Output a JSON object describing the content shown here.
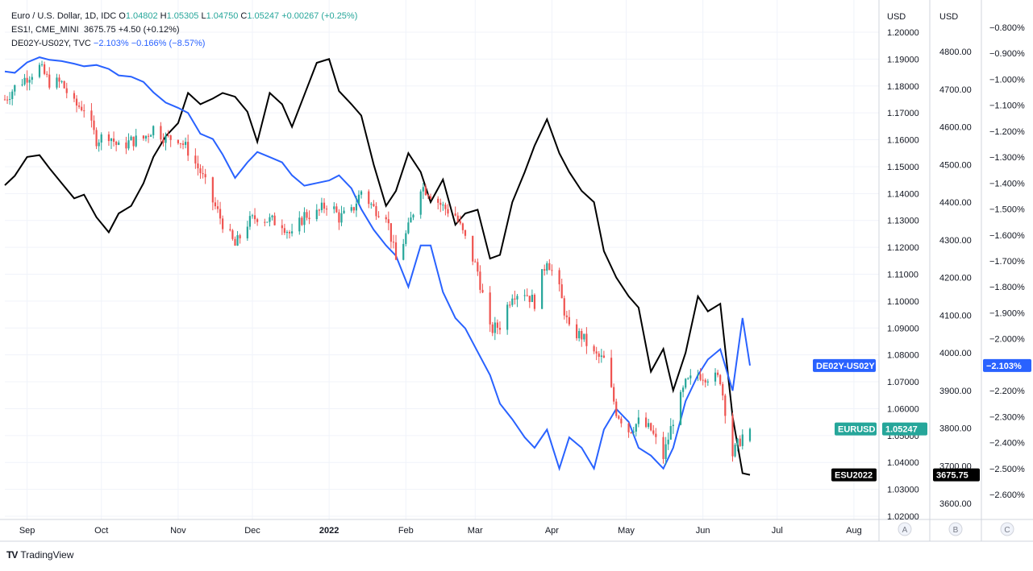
{
  "legend": {
    "eurusd": {
      "name": "Euro / U.S. Dollar, 1D, IDC",
      "o_label": "O",
      "o": "1.04802",
      "h_label": "H",
      "h": "1.05305",
      "l_label": "L",
      "l": "1.04750",
      "c_label": "C",
      "c": "1.05247",
      "change": "+0.00267 (+0.25%)"
    },
    "es1": {
      "name": "ES1!, CME_MINI",
      "value": "3675.75",
      "change": "+4.50 (+0.12%)"
    },
    "spread": {
      "name": "DE02Y-US02Y, TVC",
      "value": "−2.103%",
      "change": "−0.166% (−8.57%)"
    }
  },
  "axis_headers": {
    "a": "USD",
    "b": "USD"
  },
  "scale_buttons": [
    "A",
    "B",
    "C"
  ],
  "price_tags": {
    "spread_name": "DE02Y-US02Y",
    "spread_value": "−2.103%",
    "eurusd_name": "EURUSD",
    "eurusd_value": "1.05247",
    "es_name": "ESU2022",
    "es_value": "3675.75"
  },
  "footer": {
    "logo": "TV",
    "brand": "TradingView"
  },
  "colors": {
    "up": "#26a69a",
    "down": "#ef5350",
    "spread": "#2962ff",
    "es": "#000000",
    "eurusd_tag": "#26a69a",
    "spread_tag": "#2962ff",
    "es_tag": "#000000"
  },
  "chart_data": [
    {
      "type": "candlestick",
      "name": "EURUSD",
      "axis": "A",
      "ylim": [
        1.02,
        1.2
      ],
      "yticks": [
        "1.20000",
        "1.19000",
        "1.18000",
        "1.17000",
        "1.16000",
        "1.15000",
        "1.14000",
        "1.13000",
        "1.12000",
        "1.11000",
        "1.10000",
        "1.09000",
        "1.08000",
        "1.07000",
        "1.06000",
        "1.05000",
        "1.04000",
        "1.03000",
        "1.02000"
      ],
      "x_months": [
        "Sep",
        "Oct",
        "Nov",
        "Dec",
        "2022",
        "Feb",
        "Mar",
        "Apr",
        "May",
        "Jun",
        "Jul",
        "Aug"
      ],
      "closes": [
        [
          "2021-08-23",
          1.175
        ],
        [
          "2021-08-27",
          1.1795
        ],
        [
          "2021-09-01",
          1.1835
        ],
        [
          "2021-09-06",
          1.187
        ],
        [
          "2021-09-10",
          1.1815
        ],
        [
          "2021-09-15",
          1.181
        ],
        [
          "2021-09-20",
          1.173
        ],
        [
          "2021-09-24",
          1.172
        ],
        [
          "2021-09-29",
          1.16
        ],
        [
          "2021-10-04",
          1.162
        ],
        [
          "2021-10-08",
          1.157
        ],
        [
          "2021-10-13",
          1.1595
        ],
        [
          "2021-10-18",
          1.1605
        ],
        [
          "2021-10-22",
          1.1645
        ],
        [
          "2021-10-27",
          1.1605
        ],
        [
          "2021-11-01",
          1.1608
        ],
        [
          "2021-11-05",
          1.156
        ],
        [
          "2021-11-10",
          1.148
        ],
        [
          "2021-11-15",
          1.137
        ],
        [
          "2021-11-19",
          1.129
        ],
        [
          "2021-11-24",
          1.1205
        ],
        [
          "2021-11-29",
          1.129
        ],
        [
          "2021-12-03",
          1.1315
        ],
        [
          "2021-12-08",
          1.13
        ],
        [
          "2021-12-13",
          1.129
        ],
        [
          "2021-12-17",
          1.124
        ],
        [
          "2021-12-22",
          1.132
        ],
        [
          "2021-12-27",
          1.1325
        ],
        [
          "2022-01-01",
          1.137
        ],
        [
          "2022-01-05",
          1.131
        ],
        [
          "2022-01-10",
          1.133
        ],
        [
          "2022-01-14",
          1.141
        ],
        [
          "2022-01-19",
          1.1345
        ],
        [
          "2022-01-24",
          1.1325
        ],
        [
          "2022-01-28",
          1.115
        ],
        [
          "2022-02-02",
          1.127
        ],
        [
          "2022-02-07",
          1.143
        ],
        [
          "2022-02-11",
          1.14
        ],
        [
          "2022-02-16",
          1.135
        ],
        [
          "2022-02-21",
          1.132
        ],
        [
          "2022-02-25",
          1.123
        ],
        [
          "2022-03-02",
          1.111
        ],
        [
          "2022-03-07",
          1.089
        ],
        [
          "2022-03-11",
          1.091
        ],
        [
          "2022-03-16",
          1.103
        ],
        [
          "2022-03-21",
          1.1035
        ],
        [
          "2022-03-25",
          1.0995
        ],
        [
          "2022-03-30",
          1.116
        ],
        [
          "2022-04-04",
          1.104
        ],
        [
          "2022-04-08",
          1.089
        ],
        [
          "2022-04-13",
          1.087
        ],
        [
          "2022-04-18",
          1.08
        ],
        [
          "2022-04-22",
          1.078
        ],
        [
          "2022-04-27",
          1.059
        ],
        [
          "2022-05-02",
          1.052
        ],
        [
          "2022-05-06",
          1.055
        ],
        [
          "2022-05-11",
          1.052
        ],
        [
          "2022-05-16",
          1.042
        ],
        [
          "2022-05-20",
          1.056
        ],
        [
          "2022-05-25",
          1.069
        ],
        [
          "2022-05-30",
          1.073
        ],
        [
          "2022-06-03",
          1.072
        ],
        [
          "2022-06-08",
          1.071
        ],
        [
          "2022-06-13",
          1.043
        ],
        [
          "2022-06-17",
          1.05
        ],
        [
          "2022-06-20",
          1.0525
        ]
      ],
      "last": {
        "o": 1.04802,
        "h": 1.05305,
        "l": 1.0475,
        "c": 1.05247
      }
    },
    {
      "type": "line",
      "name": "ESU2022",
      "axis": "B",
      "ylim": [
        3550,
        4850
      ],
      "yticks": [
        "4800.00",
        "4700.00",
        "4600.00",
        "4500.00",
        "4400.00",
        "4300.00",
        "4200.00",
        "4100.00",
        "4000.00",
        "3900.00",
        "3800.00",
        "3700.00",
        "3600.00"
      ],
      "points": [
        [
          "2021-08-23",
          4445
        ],
        [
          "2021-08-27",
          4470
        ],
        [
          "2021-09-01",
          4520
        ],
        [
          "2021-09-06",
          4525
        ],
        [
          "2021-09-10",
          4490
        ],
        [
          "2021-09-15",
          4450
        ],
        [
          "2021-09-20",
          4410
        ],
        [
          "2021-09-24",
          4420
        ],
        [
          "2021-09-29",
          4360
        ],
        [
          "2021-10-04",
          4320
        ],
        [
          "2021-10-08",
          4370
        ],
        [
          "2021-10-13",
          4390
        ],
        [
          "2021-10-18",
          4450
        ],
        [
          "2021-10-22",
          4520
        ],
        [
          "2021-10-27",
          4575
        ],
        [
          "2021-11-01",
          4610
        ],
        [
          "2021-11-05",
          4690
        ],
        [
          "2021-11-10",
          4660
        ],
        [
          "2021-11-15",
          4675
        ],
        [
          "2021-11-19",
          4690
        ],
        [
          "2021-11-24",
          4680
        ],
        [
          "2021-11-29",
          4640
        ],
        [
          "2021-12-03",
          4560
        ],
        [
          "2021-12-08",
          4690
        ],
        [
          "2021-12-13",
          4660
        ],
        [
          "2021-12-17",
          4600
        ],
        [
          "2021-12-22",
          4685
        ],
        [
          "2021-12-27",
          4770
        ],
        [
          "2022-01-01",
          4780
        ],
        [
          "2022-01-05",
          4695
        ],
        [
          "2022-01-10",
          4660
        ],
        [
          "2022-01-14",
          4630
        ],
        [
          "2022-01-19",
          4500
        ],
        [
          "2022-01-24",
          4390
        ],
        [
          "2022-01-28",
          4430
        ],
        [
          "2022-02-02",
          4530
        ],
        [
          "2022-02-07",
          4480
        ],
        [
          "2022-02-11",
          4400
        ],
        [
          "2022-02-16",
          4460
        ],
        [
          "2022-02-21",
          4340
        ],
        [
          "2022-02-25",
          4370
        ],
        [
          "2022-03-02",
          4380
        ],
        [
          "2022-03-07",
          4250
        ],
        [
          "2022-03-11",
          4260
        ],
        [
          "2022-03-16",
          4400
        ],
        [
          "2022-03-21",
          4480
        ],
        [
          "2022-03-25",
          4550
        ],
        [
          "2022-03-30",
          4620
        ],
        [
          "2022-04-04",
          4530
        ],
        [
          "2022-04-08",
          4480
        ],
        [
          "2022-04-13",
          4430
        ],
        [
          "2022-04-18",
          4400
        ],
        [
          "2022-04-22",
          4270
        ],
        [
          "2022-04-27",
          4200
        ],
        [
          "2022-05-02",
          4150
        ],
        [
          "2022-05-06",
          4120
        ],
        [
          "2022-05-11",
          3950
        ],
        [
          "2022-05-16",
          4010
        ],
        [
          "2022-05-20",
          3900
        ],
        [
          "2022-05-25",
          4000
        ],
        [
          "2022-05-30",
          4150
        ],
        [
          "2022-06-03",
          4110
        ],
        [
          "2022-06-08",
          4130
        ],
        [
          "2022-06-13",
          3830
        ],
        [
          "2022-06-17",
          3680
        ],
        [
          "2022-06-20",
          3675.75
        ]
      ]
    },
    {
      "type": "line",
      "name": "DE02Y-US02Y",
      "axis": "C",
      "ylim": [
        -2.7,
        -0.75
      ],
      "yticks": [
        "−0.800%",
        "−0.900%",
        "−1.000%",
        "−1.100%",
        "−1.200%",
        "−1.300%",
        "−1.400%",
        "−1.500%",
        "−1.600%",
        "−1.700%",
        "−1.800%",
        "−1.900%",
        "−2.000%",
        "−2.100%",
        "−2.200%",
        "−2.300%",
        "−2.400%",
        "−2.500%",
        "−2.600%"
      ],
      "points": [
        [
          "2021-08-23",
          -0.97
        ],
        [
          "2021-08-27",
          -0.975
        ],
        [
          "2021-09-01",
          -0.935
        ],
        [
          "2021-09-06",
          -0.915
        ],
        [
          "2021-09-10",
          -0.925
        ],
        [
          "2021-09-15",
          -0.93
        ],
        [
          "2021-09-20",
          -0.94
        ],
        [
          "2021-09-24",
          -0.95
        ],
        [
          "2021-09-29",
          -0.945
        ],
        [
          "2021-10-04",
          -0.96
        ],
        [
          "2021-10-08",
          -0.985
        ],
        [
          "2021-10-13",
          -0.99
        ],
        [
          "2021-10-18",
          -1.01
        ],
        [
          "2021-10-22",
          -1.05
        ],
        [
          "2021-10-27",
          -1.09
        ],
        [
          "2021-11-01",
          -1.11
        ],
        [
          "2021-11-05",
          -1.13
        ],
        [
          "2021-11-10",
          -1.21
        ],
        [
          "2021-11-15",
          -1.23
        ],
        [
          "2021-11-19",
          -1.29
        ],
        [
          "2021-11-24",
          -1.38
        ],
        [
          "2021-11-29",
          -1.32
        ],
        [
          "2021-12-03",
          -1.28
        ],
        [
          "2021-12-08",
          -1.3
        ],
        [
          "2021-12-13",
          -1.32
        ],
        [
          "2021-12-17",
          -1.37
        ],
        [
          "2021-12-22",
          -1.41
        ],
        [
          "2021-12-27",
          -1.4
        ],
        [
          "2022-01-01",
          -1.39
        ],
        [
          "2022-01-05",
          -1.37
        ],
        [
          "2022-01-10",
          -1.42
        ],
        [
          "2022-01-14",
          -1.5
        ],
        [
          "2022-01-19",
          -1.58
        ],
        [
          "2022-01-24",
          -1.64
        ],
        [
          "2022-01-28",
          -1.68
        ],
        [
          "2022-02-02",
          -1.8
        ],
        [
          "2022-02-07",
          -1.64
        ],
        [
          "2022-02-11",
          -1.64
        ],
        [
          "2022-02-16",
          -1.82
        ],
        [
          "2022-02-21",
          -1.92
        ],
        [
          "2022-02-25",
          -1.96
        ],
        [
          "2022-03-02",
          -2.05
        ],
        [
          "2022-03-07",
          -2.14
        ],
        [
          "2022-03-11",
          -2.25
        ],
        [
          "2022-03-16",
          -2.31
        ],
        [
          "2022-03-21",
          -2.38
        ],
        [
          "2022-03-25",
          -2.42
        ],
        [
          "2022-03-30",
          -2.35
        ],
        [
          "2022-04-04",
          -2.5
        ],
        [
          "2022-04-08",
          -2.38
        ],
        [
          "2022-04-13",
          -2.42
        ],
        [
          "2022-04-18",
          -2.5
        ],
        [
          "2022-04-22",
          -2.35
        ],
        [
          "2022-04-27",
          -2.27
        ],
        [
          "2022-05-02",
          -2.32
        ],
        [
          "2022-05-06",
          -2.42
        ],
        [
          "2022-05-11",
          -2.45
        ],
        [
          "2022-05-16",
          -2.5
        ],
        [
          "2022-05-20",
          -2.42
        ],
        [
          "2022-05-25",
          -2.24
        ],
        [
          "2022-05-30",
          -2.14
        ],
        [
          "2022-06-03",
          -2.08
        ],
        [
          "2022-06-08",
          -2.04
        ],
        [
          "2022-06-13",
          -2.2
        ],
        [
          "2022-06-17",
          -1.92
        ],
        [
          "2022-06-20",
          -2.103
        ]
      ]
    }
  ]
}
